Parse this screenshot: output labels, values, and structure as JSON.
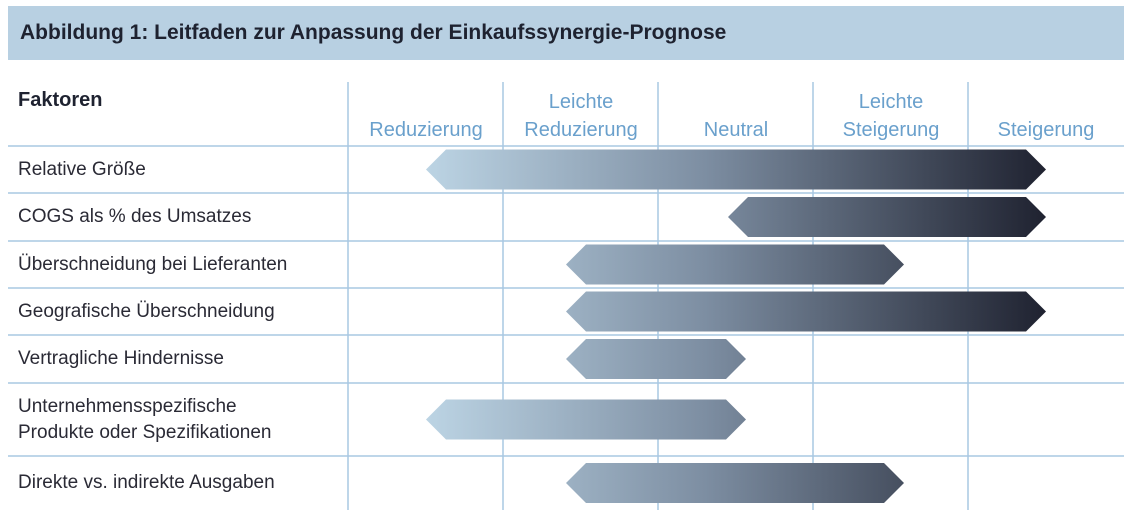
{
  "figure": {
    "title": "Abbildung 1: Leitfaden zur Anpassung der Einkaufssynergie-Prognose"
  },
  "table": {
    "factors_header": "Faktoren",
    "columns": [
      {
        "lines": [
          "Reduzierung"
        ]
      },
      {
        "lines": [
          "Leichte",
          "Reduzierung"
        ]
      },
      {
        "lines": [
          "Neutral"
        ]
      },
      {
        "lines": [
          "Leichte",
          "Steigerung"
        ]
      },
      {
        "lines": [
          "Steigerung"
        ]
      }
    ],
    "rows": [
      {
        "lines": [
          "Relative Größe"
        ],
        "range": {
          "from": "Reduzierung",
          "to": "Steigerung"
        }
      },
      {
        "lines": [
          "COGS als % des Umsatzes"
        ],
        "range": {
          "from": "Neutral",
          "to": "Steigerung"
        }
      },
      {
        "lines": [
          "Überschneidung bei Lieferanten"
        ],
        "range": {
          "from": "Leichte Reduzierung",
          "to": "Leichte Steigerung"
        }
      },
      {
        "lines": [
          "Geografische Überschneidung"
        ],
        "range": {
          "from": "Leichte Reduzierung",
          "to": "Steigerung"
        }
      },
      {
        "lines": [
          "Vertragliche Hindernisse"
        ],
        "range": {
          "from": "Leichte Reduzierung",
          "to": "Neutral"
        }
      },
      {
        "lines": [
          "Unternehmensspezifische",
          "Produkte oder Spezifikationen"
        ],
        "range": {
          "from": "Reduzierung",
          "to": "Neutral"
        }
      },
      {
        "lines": [
          "Direkte vs. indirekte Ausgaben"
        ],
        "range": {
          "from": "Leichte Reduzierung",
          "to": "Leichte Steigerung"
        }
      }
    ]
  },
  "colors": {
    "title_bg": "#b8d0e2",
    "grid_line": "#a9c8e2",
    "column_header_text": "#6aa0cc",
    "arrow_light": "#bcd4e4",
    "arrow_mid": "#7d8ea2",
    "arrow_dark": "#1f2230"
  }
}
